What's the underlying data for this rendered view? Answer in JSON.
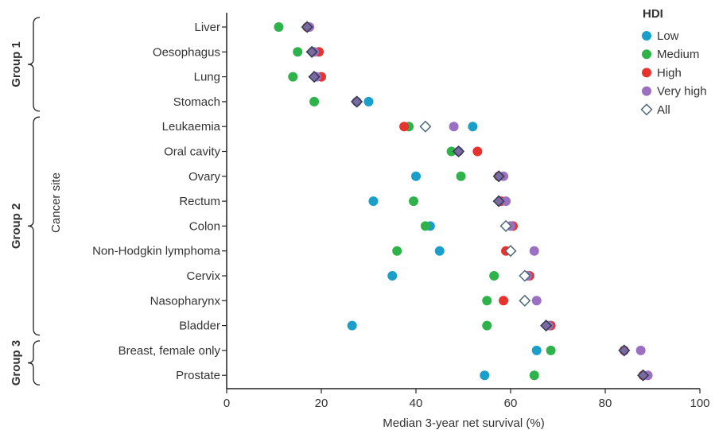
{
  "chart_data": {
    "type": "scatter",
    "xlabel": "Median 3-year net survival (%)",
    "ylabel": "Cancer site",
    "xlim": [
      0,
      100
    ],
    "xticks": [
      0,
      20,
      40,
      60,
      80,
      100
    ],
    "grid": false,
    "legend_title": "HDI",
    "legend_position": "top-right",
    "categories": [
      "Liver",
      "Oesophagus",
      "Lung",
      "Stomach",
      "Leukaemia",
      "Oral cavity",
      "Ovary",
      "Rectum",
      "Colon",
      "Non-Hodgkin lymphoma",
      "Cervix",
      "Nasopharynx",
      "Bladder",
      "Breast, female only",
      "Prostate"
    ],
    "groups": [
      {
        "label": "Group 1",
        "from": 0,
        "to": 3
      },
      {
        "label": "Group 2",
        "from": 4,
        "to": 12
      },
      {
        "label": "Group 3",
        "from": 13,
        "to": 14
      }
    ],
    "series": [
      {
        "name": "Low",
        "marker": "circle",
        "color": "#1a9fcb",
        "values": [
          null,
          null,
          null,
          30,
          52,
          null,
          40,
          31,
          43,
          45,
          35,
          null,
          26.5,
          65.5,
          54.5
        ]
      },
      {
        "name": "Medium",
        "marker": "circle",
        "color": "#2db34a",
        "values": [
          11,
          15,
          14,
          18.5,
          38.5,
          47.5,
          49.5,
          39.5,
          42,
          36,
          56.5,
          55,
          55,
          68.5,
          65
        ]
      },
      {
        "name": "High",
        "marker": "circle",
        "color": "#e8322d",
        "values": [
          17,
          19.5,
          20,
          null,
          37.5,
          53,
          57.5,
          58,
          60.5,
          59,
          64,
          58.5,
          68.5,
          84,
          88
        ]
      },
      {
        "name": "Very high",
        "marker": "circle",
        "color": "#9b6fc1",
        "values": [
          17.5,
          18.5,
          19,
          27.5,
          48,
          49,
          58.5,
          59,
          60,
          65,
          63.5,
          65.5,
          68,
          87.5,
          89
        ]
      },
      {
        "name": "All",
        "marker": "diamond",
        "color": "#ffffff",
        "stroke": "#4f6b7a",
        "values": [
          null,
          null,
          null,
          null,
          42,
          null,
          null,
          null,
          59,
          60,
          63,
          63,
          null,
          null,
          null
        ]
      },
      {
        "name": "",
        "marker": "diamond",
        "color": "#7a6aa0",
        "stroke": "#2f3a4f",
        "values": [
          17,
          18,
          18.5,
          27.5,
          null,
          49,
          57.5,
          57.5,
          null,
          null,
          null,
          null,
          67.5,
          84,
          88
        ]
      }
    ]
  }
}
